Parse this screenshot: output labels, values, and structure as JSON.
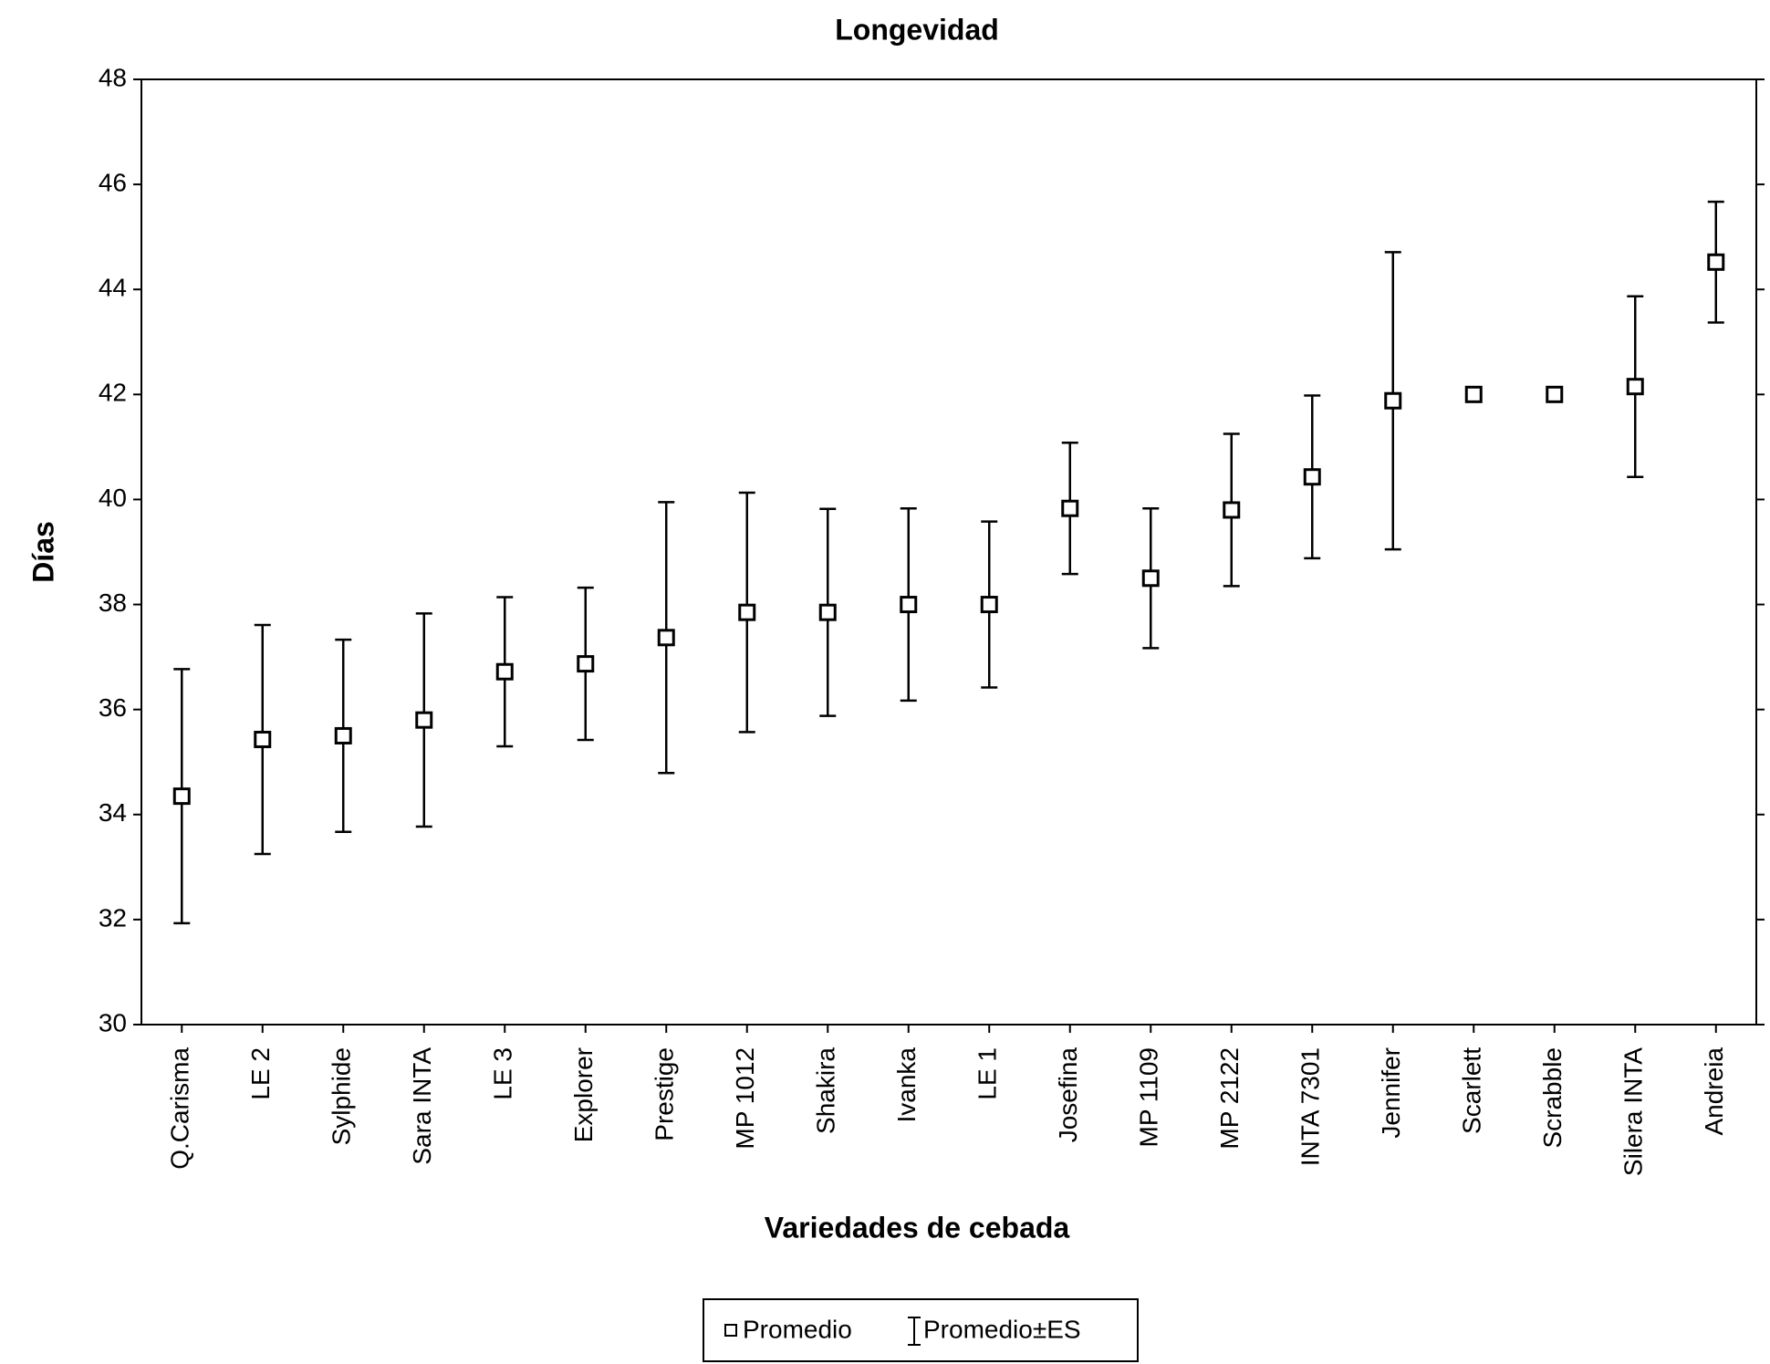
{
  "chart_data": {
    "type": "errorbar",
    "title": "Longevidad",
    "x_label": "Variedades de cebada",
    "y_label": "Días",
    "categories": [
      "Q.Carisma",
      "LE 2",
      "Sylphide",
      "Sara INTA",
      "LE 3",
      "Explorer",
      "Prestige",
      "MP 1012",
      "Shakira",
      "Ivanka",
      "LE 1",
      "Josefina",
      "MP 1109",
      "MP 2122",
      "INTA 7301",
      "Jennifer",
      "Scarlett",
      "Scrabble",
      "Silera INTA",
      "Andreia"
    ],
    "series": [
      {
        "name": "Promedio",
        "color": "#000000",
        "values": [
          34.35,
          35.43,
          35.5,
          35.8,
          36.72,
          36.87,
          37.37,
          37.85,
          37.85,
          38.0,
          38.0,
          39.83,
          38.5,
          39.8,
          40.43,
          41.88,
          42.0,
          42.0,
          42.15,
          44.52
        ],
        "errors": [
          2.42,
          2.18,
          1.83,
          2.03,
          1.42,
          1.45,
          2.58,
          2.28,
          1.97,
          1.83,
          1.58,
          1.25,
          1.33,
          1.45,
          1.55,
          2.83,
          0,
          0,
          1.72,
          1.15
        ]
      }
    ],
    "error_label": "Promedio±ES",
    "ylim": [
      30,
      48
    ],
    "yticks": [
      30,
      32,
      34,
      36,
      38,
      40,
      42,
      44,
      46,
      48
    ],
    "grid": false
  }
}
